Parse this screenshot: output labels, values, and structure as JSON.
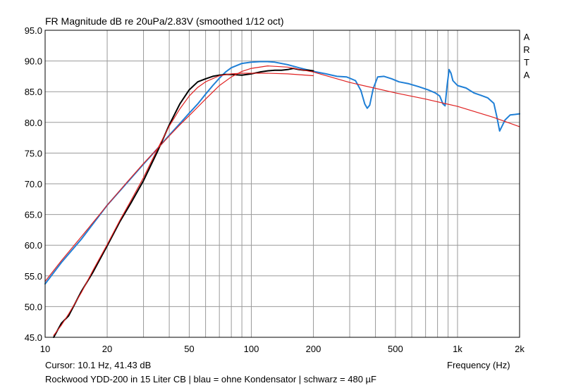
{
  "chart_data": {
    "type": "line",
    "title": "FR Magnitude dB re 20uPa/2.83V (smoothed 1/12 oct)",
    "brand": [
      "A",
      "R",
      "T",
      "A"
    ],
    "xlabel": "Frequency (Hz)",
    "ylabel": "",
    "x_scale": "log",
    "xlim": [
      10,
      2000
    ],
    "ylim": [
      45,
      95
    ],
    "grid": true,
    "x_ticks": [
      {
        "value": 10,
        "label": "10"
      },
      {
        "value": 20,
        "label": "20"
      },
      {
        "value": 50,
        "label": "50"
      },
      {
        "value": 100,
        "label": "100"
      },
      {
        "value": 200,
        "label": "200"
      },
      {
        "value": 500,
        "label": "500"
      },
      {
        "value": 1000,
        "label": "1k"
      },
      {
        "value": 2000,
        "label": "2k"
      }
    ],
    "y_ticks": [
      {
        "value": 45,
        "label": "45.0"
      },
      {
        "value": 50,
        "label": "50.0"
      },
      {
        "value": 55,
        "label": "55.0"
      },
      {
        "value": 60,
        "label": "60.0"
      },
      {
        "value": 65,
        "label": "65.0"
      },
      {
        "value": 70,
        "label": "70.0"
      },
      {
        "value": 75,
        "label": "75.0"
      },
      {
        "value": 80,
        "label": "80.0"
      },
      {
        "value": 85,
        "label": "85.0"
      },
      {
        "value": 90,
        "label": "90.0"
      },
      {
        "value": 95,
        "label": "95.0"
      }
    ],
    "series": [
      {
        "color": "#1f7fd6",
        "x": [
          10,
          12,
          15,
          20,
          25,
          30,
          35,
          40,
          45,
          50,
          55,
          60,
          65,
          70,
          75,
          80,
          90,
          100,
          110,
          120,
          130,
          150,
          170,
          200,
          230,
          260,
          290,
          300,
          320,
          340,
          355,
          365,
          375,
          390,
          410,
          440,
          480,
          520,
          580,
          650,
          720,
          780,
          820,
          850,
          870,
          890,
          910,
          930,
          950,
          1000,
          1100,
          1200,
          1300,
          1400,
          1500,
          1550,
          1600,
          1650,
          1700,
          1800,
          1900,
          2000
        ],
        "y": [
          53.7,
          57.2,
          61.0,
          66.5,
          70.2,
          73.2,
          75.7,
          77.9,
          79.8,
          81.5,
          83.0,
          84.6,
          86.0,
          87.2,
          88.2,
          88.9,
          89.6,
          89.8,
          89.9,
          89.9,
          89.8,
          89.4,
          88.9,
          88.3,
          87.9,
          87.5,
          87.4,
          87.2,
          86.8,
          85.2,
          83.0,
          82.3,
          82.8,
          85.5,
          87.4,
          87.5,
          87.1,
          86.6,
          86.3,
          85.8,
          85.3,
          84.8,
          84.3,
          83.0,
          82.7,
          86.0,
          88.6,
          88.0,
          86.8,
          86.0,
          85.6,
          84.8,
          84.4,
          84.0,
          83.1,
          81.0,
          78.6,
          79.5,
          80.4,
          81.2,
          81.3,
          81.4
        ]
      },
      {
        "color": "#000000",
        "x": [
          11,
          12,
          13,
          15,
          17,
          20,
          23,
          26,
          30,
          35,
          40,
          45,
          50,
          55,
          60,
          65,
          70,
          75,
          80,
          90,
          100,
          110,
          120,
          130,
          140,
          150,
          160,
          170,
          180,
          190,
          200
        ],
        "y": [
          45.0,
          47.3,
          48.5,
          52.5,
          55.5,
          59.9,
          63.8,
          66.8,
          70.5,
          75.2,
          79.6,
          83.0,
          85.3,
          86.6,
          87.1,
          87.5,
          87.7,
          87.8,
          87.8,
          87.7,
          87.9,
          88.2,
          88.4,
          88.5,
          88.5,
          88.6,
          88.8,
          88.6,
          88.5,
          88.5,
          88.4
        ]
      },
      {
        "color": "#e02020",
        "x": [
          10,
          12,
          15,
          20,
          25,
          30,
          35,
          40,
          45,
          50,
          55,
          60,
          70,
          80,
          90,
          100,
          120,
          150,
          200,
          300,
          500,
          700,
          1000,
          1500,
          2000
        ],
        "y": [
          54.1,
          57.5,
          61.4,
          66.5,
          70.3,
          73.3,
          75.7,
          77.8,
          79.6,
          81.1,
          82.5,
          83.8,
          86.0,
          87.4,
          88.3,
          88.8,
          89.2,
          89.0,
          88.2,
          86.5,
          84.8,
          83.8,
          82.6,
          80.8,
          79.3
        ]
      },
      {
        "color": "#e02020",
        "x": [
          11,
          12,
          13,
          15,
          17,
          20,
          23,
          26,
          30,
          35,
          40,
          45,
          50,
          55,
          60,
          70,
          80,
          90,
          100,
          120,
          150,
          200
        ],
        "y": [
          45.3,
          47.0,
          48.8,
          52.3,
          55.8,
          60.1,
          64.0,
          67.2,
          71.0,
          75.6,
          79.4,
          82.2,
          84.3,
          85.7,
          86.6,
          87.6,
          87.9,
          88.0,
          88.0,
          88.0,
          87.9,
          87.6
        ]
      }
    ]
  },
  "footer": {
    "cursor": "Cursor: 10.1 Hz, 41.43 dB",
    "caption": "Rockwood YDD-200 in 15 Liter CB  |  blau = ohne Kondensator  |  schwarz = 480 µF"
  }
}
